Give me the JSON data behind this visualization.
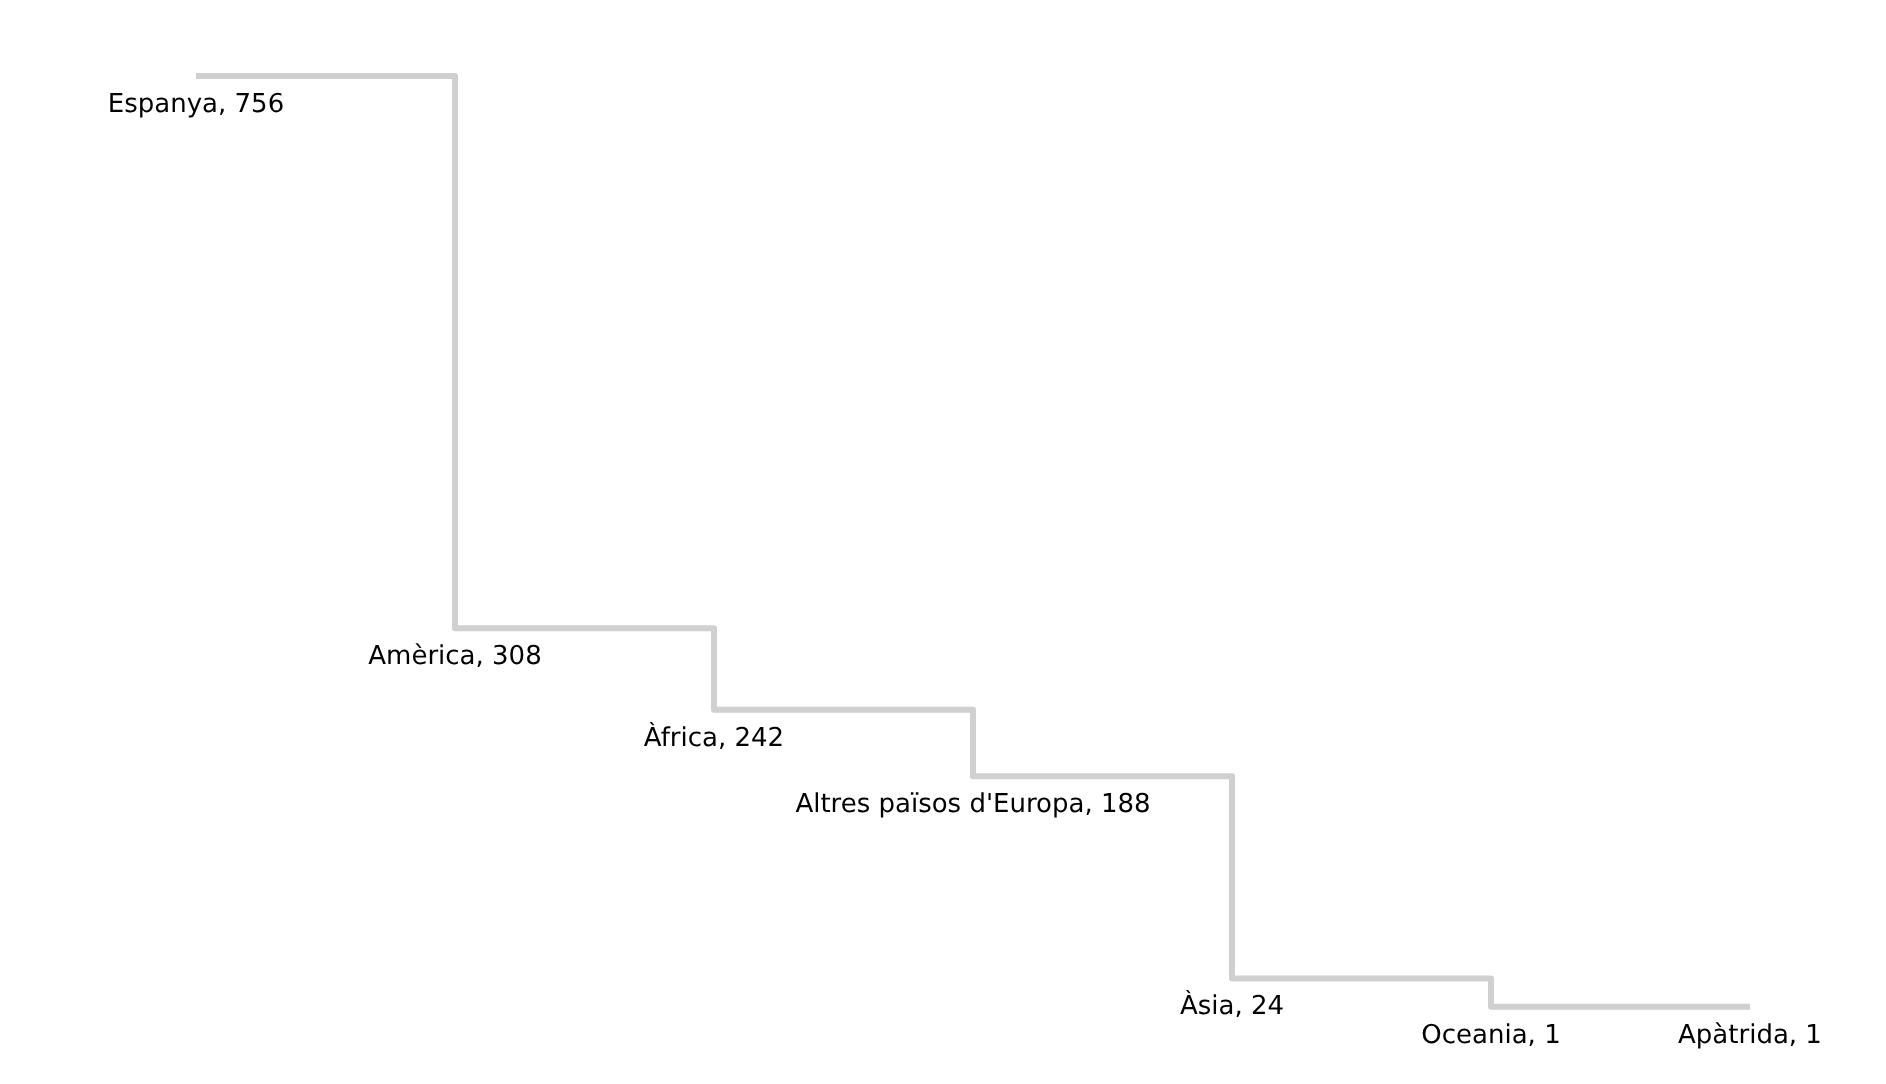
{
  "chart_data": {
    "type": "step",
    "categories": [
      null,
      null,
      null,
      null,
      null,
      null,
      null
    ],
    "values": [
      756,
      308,
      242,
      188,
      24,
      1,
      1
    ],
    "value_labels": [
      "Espanya, 756",
      "Amèrica, 308",
      "Àfrica, 242",
      "Altres països d'Europa, 188",
      "Àsia, 24",
      "Oceania, 1",
      "Apàtrida, 1"
    ],
    "color": "#d0d0d0",
    "marker": "none"
  }
}
